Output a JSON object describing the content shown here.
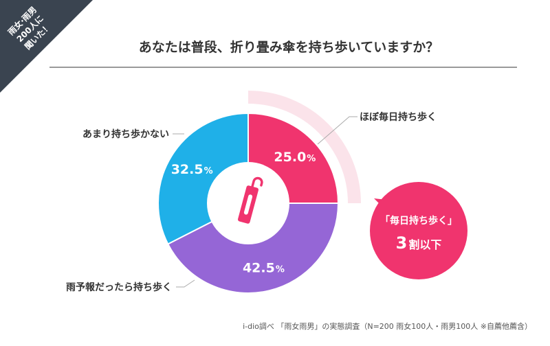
{
  "corner_badge": {
    "lines": [
      "雨女·雨男",
      "200人に",
      "聞いた！"
    ],
    "color": "#3a4450"
  },
  "title": "あなたは普段、折り畳み傘を持ち歩いていますか？",
  "colors": {
    "accent": "#f0346e",
    "arc_highlight": "#fbe3ea",
    "hole_icon": "#f0346e"
  },
  "chart_data": {
    "type": "pie",
    "title": "あなたは普段、折り畳み傘を持ち歩いていますか？",
    "slices": [
      {
        "label": "ほぼ毎日持ち歩く",
        "value": 25.0,
        "display": "25.0",
        "color": "#f0346e"
      },
      {
        "label": "雨予報だったら持ち歩く",
        "value": 42.5,
        "display": "42.5",
        "color": "#9566d6"
      },
      {
        "label": "あまり持ち歩かない",
        "value": 32.5,
        "display": "32.5",
        "color": "#1fb0e8"
      }
    ],
    "unit": "%",
    "center_icon": "folding-umbrella-icon"
  },
  "callout": {
    "line1": "「毎日持ち歩く」",
    "big": "3",
    "small": "割以下",
    "color": "#f0346e"
  },
  "source": "i-dio調べ 「雨女雨男」の実態調査（N=200 雨女100人・雨男100人 ※自薦他薦含）"
}
